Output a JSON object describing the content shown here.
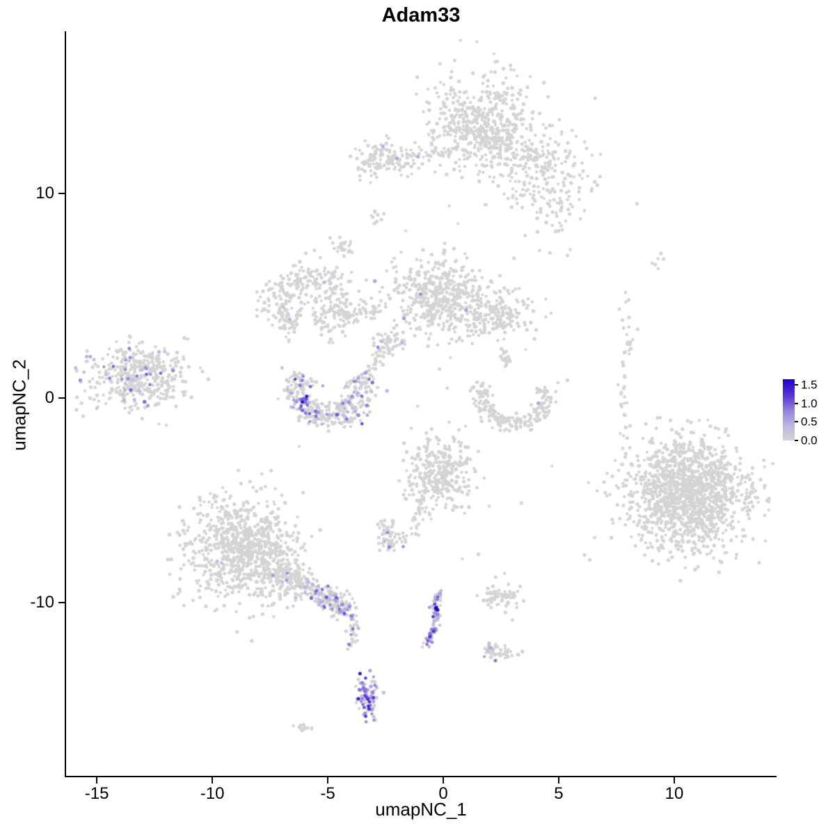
{
  "chart_data": {
    "type": "scatter",
    "title": "Adam33",
    "xlabel": "umapNC_1",
    "ylabel": "umapNC_2",
    "xlim": [
      -16.33,
      14.4
    ],
    "ylim": [
      -18.47,
      17.93
    ],
    "grid": "off",
    "legend_position": "right",
    "x_ticks": [
      {
        "value": -15,
        "label": "-15"
      },
      {
        "value": -10,
        "label": "-10"
      },
      {
        "value": -5,
        "label": "-5"
      },
      {
        "value": 0,
        "label": "0"
      },
      {
        "value": 5,
        "label": "5"
      },
      {
        "value": 10,
        "label": "10"
      }
    ],
    "y_ticks": [
      {
        "value": 10,
        "label": "10"
      },
      {
        "value": 0,
        "label": "0"
      },
      {
        "value": -10,
        "label": "-10"
      }
    ],
    "legend": {
      "vmin": 0,
      "vmax": 1.65,
      "labels": [
        {
          "value": 1.5,
          "label": "1.5"
        },
        {
          "value": 1.0,
          "label": "1.0"
        },
        {
          "value": 0.5,
          "label": "0.5"
        },
        {
          "value": 0.0,
          "label": "0.0"
        }
      ]
    },
    "color_stops": [
      [
        0.0,
        "#d4d4d4"
      ],
      [
        0.4,
        "#beb6e2"
      ],
      [
        0.8,
        "#9583da"
      ],
      [
        1.2,
        "#5b36d6"
      ],
      [
        1.65,
        "#2000c8"
      ]
    ],
    "clusters": [
      {
        "name": "top-main",
        "type": "gauss",
        "cx": 1.7,
        "cy": 13.4,
        "sx": 1.1,
        "sy": 1.25,
        "n": 520,
        "expr": {
          "frac": 0,
          "min": 0,
          "max": 0
        }
      },
      {
        "name": "top-arm",
        "type": "gauss",
        "cx": 4.5,
        "cy": 10.6,
        "sx": 1.15,
        "sy": 1.2,
        "n": 200,
        "expr": {
          "frac": 0,
          "min": 0,
          "max": 0
        }
      },
      {
        "name": "top-arm-bridge",
        "type": "path",
        "pts": [
          [
            1.9,
            13.0
          ],
          [
            3.3,
            12.1
          ],
          [
            4.7,
            11.5
          ]
        ],
        "w": 0.55,
        "n": 70,
        "expr": {
          "frac": 0,
          "min": 0,
          "max": 0
        }
      },
      {
        "name": "top-left-small",
        "type": "gauss",
        "cx": -2.5,
        "cy": 11.7,
        "sx": 0.72,
        "sy": 0.42,
        "n": 130,
        "expr": {
          "frac": 0.008,
          "min": 0.4,
          "max": 0.8
        }
      },
      {
        "name": "top-bridge",
        "type": "path",
        "pts": [
          [
            -1.4,
            11.7
          ],
          [
            0.7,
            12.1
          ]
        ],
        "w": 0.3,
        "n": 24,
        "expr": {
          "frac": 0,
          "min": 0,
          "max": 0
        }
      },
      {
        "name": "mid-left-ring",
        "type": "arc",
        "cx": -5.9,
        "cy": 4.6,
        "r": 1.35,
        "a0": -70,
        "a1": 250,
        "w": 0.85,
        "n": 330,
        "expr": {
          "frac": 0.003,
          "min": 0.3,
          "max": 0.5
        }
      },
      {
        "name": "mid-left-streak",
        "type": "gauss",
        "cx": -4.4,
        "cy": 7.3,
        "sx": 0.28,
        "sy": 0.38,
        "n": 26,
        "expr": {
          "frac": 0,
          "min": 0,
          "max": 0
        }
      },
      {
        "name": "mid-left-dot",
        "type": "gauss",
        "cx": -2.9,
        "cy": 8.8,
        "sx": 0.2,
        "sy": 0.16,
        "n": 9,
        "expr": {
          "frac": 0,
          "min": 0,
          "max": 0
        }
      },
      {
        "name": "mid-bridge",
        "type": "path",
        "pts": [
          [
            -4.3,
            3.9
          ],
          [
            -2.7,
            4.4
          ]
        ],
        "w": 0.45,
        "n": 50,
        "expr": {
          "frac": 0,
          "min": 0,
          "max": 0
        }
      },
      {
        "name": "mid-main",
        "type": "gauss",
        "cx": -0.1,
        "cy": 4.9,
        "sx": 1.1,
        "sy": 0.95,
        "n": 470,
        "expr": {
          "frac": 0.004,
          "min": 0.4,
          "max": 0.9
        }
      },
      {
        "name": "mid-main-arm",
        "type": "gauss",
        "cx": 2.3,
        "cy": 4.0,
        "sx": 0.8,
        "sy": 0.6,
        "n": 170,
        "expr": {
          "frac": 0,
          "min": 0,
          "max": 0
        }
      },
      {
        "name": "small-mid",
        "type": "gauss",
        "cx": -2.3,
        "cy": 2.7,
        "sx": 0.33,
        "sy": 0.4,
        "n": 60,
        "expr": {
          "frac": 0.12,
          "min": 0.3,
          "max": 0.9
        }
      },
      {
        "name": "crescent-main",
        "type": "arc",
        "cx": -4.85,
        "cy": 0.45,
        "r": 1.42,
        "a0": 150,
        "a1": 390,
        "w": 0.68,
        "n": 340,
        "expr": {
          "frac": 0.26,
          "min": 0.15,
          "max": 1.15
        }
      },
      {
        "name": "crescent-hot",
        "type": "gauss",
        "cx": -6.05,
        "cy": -0.1,
        "sx": 0.16,
        "sy": 0.2,
        "n": 14,
        "expr": {
          "frac": 0.92,
          "min": 0.7,
          "max": 1.6
        }
      },
      {
        "name": "crescent-link",
        "type": "path",
        "pts": [
          [
            -3.4,
            1.0
          ],
          [
            -2.7,
            2.1
          ]
        ],
        "w": 0.3,
        "n": 20,
        "expr": {
          "frac": 0.08,
          "min": 0.3,
          "max": 0.7
        }
      },
      {
        "name": "left-main",
        "type": "gauss",
        "cx": -13.3,
        "cy": 1.05,
        "sx": 1.0,
        "sy": 0.78,
        "n": 380,
        "expr": {
          "frac": 0.12,
          "min": 0.15,
          "max": 1.0
        }
      },
      {
        "name": "left-halo",
        "type": "gauss",
        "cx": -11.6,
        "cy": 0.9,
        "sx": 0.55,
        "sy": 0.95,
        "n": 26,
        "expr": {
          "frac": 0.06,
          "min": 0.3,
          "max": 0.8
        }
      },
      {
        "name": "right-crescent",
        "type": "arc",
        "cx": 3.05,
        "cy": 0.1,
        "r": 1.4,
        "a0": 155,
        "a1": 385,
        "w": 0.45,
        "n": 200,
        "expr": {
          "frac": 0.004,
          "min": 0.3,
          "max": 0.5
        }
      },
      {
        "name": "right-crescent-top",
        "type": "path",
        "pts": [
          [
            2.6,
            2.4
          ],
          [
            2.95,
            1.4
          ]
        ],
        "w": 0.22,
        "n": 20,
        "expr": {
          "frac": 0,
          "min": 0,
          "max": 0
        }
      },
      {
        "name": "right-col",
        "type": "path",
        "pts": [
          [
            7.7,
            5.2
          ],
          [
            8.1,
            3.1
          ],
          [
            7.8,
            0.6
          ],
          [
            7.8,
            -2.2
          ]
        ],
        "w": 0.27,
        "n": 40,
        "expr": {
          "frac": 0,
          "min": 0,
          "max": 0
        }
      },
      {
        "name": "right-col-top",
        "type": "gauss",
        "cx": 9.4,
        "cy": 6.7,
        "sx": 0.25,
        "sy": 0.2,
        "n": 6,
        "expr": {
          "frac": 0,
          "min": 0,
          "max": 0
        }
      },
      {
        "name": "big-right",
        "type": "gauss",
        "cx": 10.6,
        "cy": -4.7,
        "sx": 1.35,
        "sy": 1.35,
        "n": 1350,
        "expr": {
          "frac": 0,
          "min": 0,
          "max": 0
        }
      },
      {
        "name": "center-low",
        "type": "gauss",
        "cx": -0.2,
        "cy": -3.6,
        "sx": 0.7,
        "sy": 0.95,
        "n": 300,
        "expr": {
          "frac": 0.003,
          "min": 0.3,
          "max": 0.6
        }
      },
      {
        "name": "center-low-tail",
        "type": "path",
        "pts": [
          [
            -0.9,
            -4.8
          ],
          [
            -1.2,
            -6.7
          ]
        ],
        "w": 0.25,
        "n": 28,
        "expr": {
          "frac": 0,
          "min": 0,
          "max": 0
        }
      },
      {
        "name": "small-low",
        "type": "gauss",
        "cx": -2.3,
        "cy": -6.8,
        "sx": 0.38,
        "sy": 0.36,
        "n": 66,
        "expr": {
          "frac": 0.05,
          "min": 0.3,
          "max": 0.8
        }
      },
      {
        "name": "bottomleft-main",
        "type": "gauss",
        "cx": -8.7,
        "cy": -7.4,
        "sx": 1.2,
        "sy": 1.3,
        "n": 860,
        "expr": {
          "frac": 0.004,
          "min": 0.3,
          "max": 0.8
        }
      },
      {
        "name": "bl-arm1",
        "type": "path",
        "pts": [
          [
            -7.2,
            -8.4
          ],
          [
            -5.9,
            -9.2
          ]
        ],
        "w": 0.55,
        "n": 130,
        "expr": {
          "frac": 0.07,
          "min": 0.2,
          "max": 0.8
        }
      },
      {
        "name": "bl-arm2",
        "type": "path",
        "pts": [
          [
            -5.9,
            -9.2
          ],
          [
            -4.1,
            -10.3
          ]
        ],
        "w": 0.5,
        "n": 180,
        "expr": {
          "frac": 0.3,
          "min": 0.2,
          "max": 1.1
        }
      },
      {
        "name": "chain-down",
        "type": "path",
        "pts": [
          [
            -4.0,
            -10.6
          ],
          [
            -3.8,
            -11.5
          ],
          [
            -4.0,
            -12.4
          ]
        ],
        "w": 0.22,
        "n": 34,
        "expr": {
          "frac": 0.25,
          "min": 0.2,
          "max": 0.9
        }
      },
      {
        "name": "chain-blob",
        "type": "gauss",
        "cx": -3.3,
        "cy": -14.65,
        "sx": 0.26,
        "sy": 0.5,
        "n": 95,
        "expr": {
          "frac": 0.7,
          "min": 0.2,
          "max": 1.5
        }
      },
      {
        "name": "tiny-bottom",
        "type": "gauss",
        "cx": -6.0,
        "cy": -16.1,
        "sx": 0.24,
        "sy": 0.12,
        "n": 13,
        "expr": {
          "frac": 0,
          "min": 0,
          "max": 0
        }
      },
      {
        "name": "center-chain",
        "type": "path",
        "pts": [
          [
            -0.2,
            -9.4
          ],
          [
            -0.35,
            -10.2
          ],
          [
            -0.3,
            -11.0
          ],
          [
            -0.7,
            -12.1
          ]
        ],
        "w": 0.2,
        "n": 90,
        "expr": {
          "frac": 0.62,
          "min": 0.2,
          "max": 1.3
        }
      },
      {
        "name": "center-chain-hot",
        "type": "gauss",
        "cx": -0.35,
        "cy": -10.3,
        "sx": 0.05,
        "sy": 0.07,
        "n": 3,
        "expr": {
          "frac": 1,
          "min": 1.4,
          "max": 1.7
        }
      },
      {
        "name": "small-right-low",
        "type": "gauss",
        "cx": 2.35,
        "cy": -12.4,
        "sx": 0.33,
        "sy": 0.22,
        "n": 46,
        "expr": {
          "frac": 0.2,
          "min": 0.2,
          "max": 0.9
        }
      },
      {
        "name": "sparse-mid-right",
        "type": "gauss",
        "cx": 2.4,
        "cy": -9.7,
        "sx": 0.5,
        "sy": 0.38,
        "n": 65,
        "expr": {
          "frac": 0,
          "min": 0,
          "max": 0
        }
      },
      {
        "name": "singles",
        "type": "points",
        "pts": [
          [
            6.15,
            -7.75
          ],
          [
            6.3,
            -7.9
          ],
          [
            3.4,
            -5.1
          ],
          [
            2.0,
            -5.3
          ],
          [
            4.7,
            -3.3
          ],
          [
            0.9,
            -5.6
          ],
          [
            -1.6,
            8.2
          ],
          [
            0.3,
            9.4
          ],
          [
            0.6,
            8.5
          ],
          [
            -0.2,
            1.4
          ],
          [
            0.2,
            0.5
          ],
          [
            1.0,
            -1.4
          ],
          [
            1.5,
            -7.6
          ],
          [
            0.8,
            -7.9
          ],
          [
            -11.2,
            2.9
          ],
          [
            5.4,
            0.9
          ],
          [
            3.6,
            2.3
          ]
        ],
        "expr": {
          "frac": 0,
          "min": 0,
          "max": 0
        }
      }
    ]
  }
}
